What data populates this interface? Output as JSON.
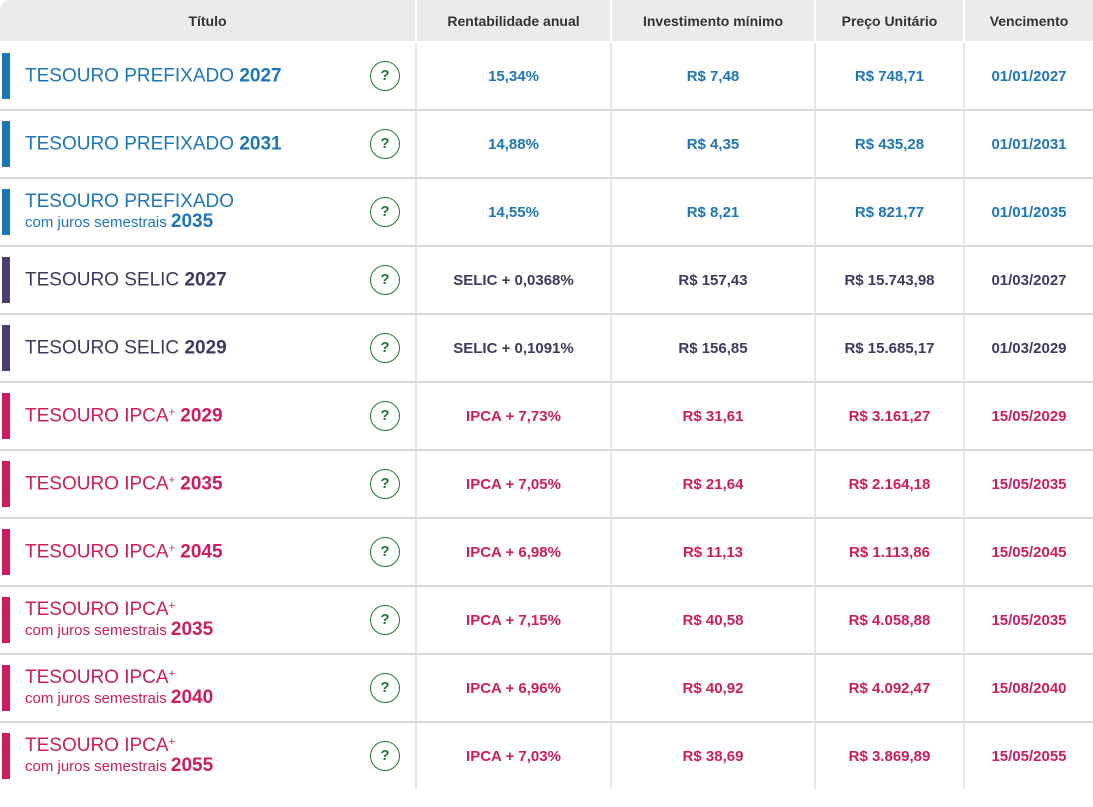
{
  "headers": {
    "titulo": "Título",
    "rentabilidade": "Rentabilidade anual",
    "investimento": "Investimento mínimo",
    "preco": "Preço Unitário",
    "vencimento": "Vencimento"
  },
  "colors": {
    "prefixado": "#1d76b5",
    "selic": "#41375f",
    "ipca": "#cc1c5d",
    "help_icon": "#1f7a36"
  },
  "help_icon": {
    "glyph": "?",
    "icon": "question-circle-icon"
  },
  "rows": [
    {
      "name": "TESOURO PREFIXADO",
      "sup": "",
      "sub": "",
      "year": "2027",
      "rentabilidade": "15,34%",
      "investimento": "R$ 7,48",
      "preco": "R$ 748,71",
      "vencimento": "01/01/2027"
    },
    {
      "name": "TESOURO PREFIXADO",
      "sup": "",
      "sub": "",
      "year": "2031",
      "rentabilidade": "14,88%",
      "investimento": "R$ 4,35",
      "preco": "R$ 435,28",
      "vencimento": "01/01/2031"
    },
    {
      "name": "TESOURO PREFIXADO",
      "sup": "",
      "sub": "com juros semestrais",
      "year": "2035",
      "rentabilidade": "14,55%",
      "investimento": "R$ 8,21",
      "preco": "R$ 821,77",
      "vencimento": "01/01/2035"
    },
    {
      "name": "TESOURO SELIC",
      "sup": "",
      "sub": "",
      "year": "2027",
      "rentabilidade": "SELIC + 0,0368%",
      "investimento": "R$ 157,43",
      "preco": "R$ 15.743,98",
      "vencimento": "01/03/2027"
    },
    {
      "name": "TESOURO SELIC",
      "sup": "",
      "sub": "",
      "year": "2029",
      "rentabilidade": "SELIC + 0,1091%",
      "investimento": "R$ 156,85",
      "preco": "R$ 15.685,17",
      "vencimento": "01/03/2029"
    },
    {
      "name": "TESOURO IPCA",
      "sup": "+",
      "sub": "",
      "year": "2029",
      "rentabilidade": "IPCA + 7,73%",
      "investimento": "R$ 31,61",
      "preco": "R$ 3.161,27",
      "vencimento": "15/05/2029"
    },
    {
      "name": "TESOURO IPCA",
      "sup": "+",
      "sub": "",
      "year": "2035",
      "rentabilidade": "IPCA + 7,05%",
      "investimento": "R$ 21,64",
      "preco": "R$ 2.164,18",
      "vencimento": "15/05/2035"
    },
    {
      "name": "TESOURO IPCA",
      "sup": "+",
      "sub": "",
      "year": "2045",
      "rentabilidade": "IPCA + 6,98%",
      "investimento": "R$ 11,13",
      "preco": "R$ 1.113,86",
      "vencimento": "15/05/2045"
    },
    {
      "name": "TESOURO IPCA",
      "sup": "+",
      "sub": "com juros semestrais",
      "year": "2035",
      "rentabilidade": "IPCA + 7,15%",
      "investimento": "R$ 40,58",
      "preco": "R$ 4.058,88",
      "vencimento": "15/05/2035"
    },
    {
      "name": "TESOURO IPCA",
      "sup": "+",
      "sub": "com juros semestrais",
      "year": "2040",
      "rentabilidade": "IPCA + 6,96%",
      "investimento": "R$ 40,92",
      "preco": "R$ 4.092,47",
      "vencimento": "15/08/2040"
    },
    {
      "name": "TESOURO IPCA",
      "sup": "+",
      "sub": "com juros semestrais",
      "year": "2055",
      "rentabilidade": "IPCA + 7,03%",
      "investimento": "R$ 38,69",
      "preco": "R$ 3.869,89",
      "vencimento": "15/05/2055"
    }
  ]
}
